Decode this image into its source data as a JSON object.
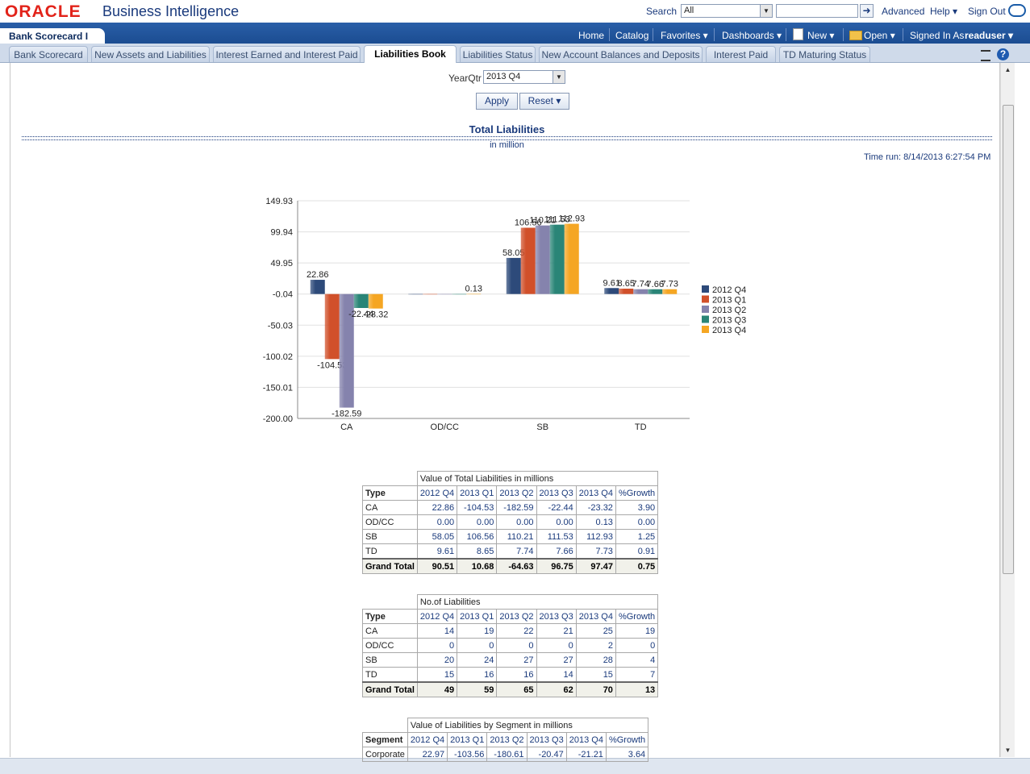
{
  "header": {
    "logo": "ORACLE",
    "app_title": "Business Intelligence",
    "search_label": "Search",
    "search_scope": "All",
    "advanced": "Advanced",
    "help": "Help ▾",
    "signout": "Sign Out"
  },
  "nav": {
    "dashboard_title": "Bank Scorecard I",
    "home": "Home",
    "catalog": "Catalog",
    "favorites": "Favorites ▾",
    "dashboards": "Dashboards ▾",
    "new": "New ▾",
    "open": "Open ▾",
    "signed_in_as": "Signed In As",
    "user": "readuser ▾"
  },
  "tabs": [
    {
      "label": "Bank Scorecard"
    },
    {
      "label": "New Assets and Liabilities"
    },
    {
      "label": "Interest Earned and Interest Paid"
    },
    {
      "label": "Liabilities Book"
    },
    {
      "label": "Liabilities Status"
    },
    {
      "label": "New Account Balances and Deposits"
    },
    {
      "label": "Interest Paid"
    },
    {
      "label": "TD Maturing Status"
    }
  ],
  "prompt": {
    "label": "YearQtr",
    "value": "2013 Q4",
    "apply": "Apply",
    "reset": "Reset ▾"
  },
  "report": {
    "title": "Total Liabilities",
    "subtitle": "in million",
    "time_run": "Time run: 8/14/2013 6:27:54 PM"
  },
  "chart_data": {
    "type": "bar",
    "categories": [
      "CA",
      "OD/CC",
      "SB",
      "TD"
    ],
    "y_ticks": [
      "149.93",
      "99.94",
      "49.95",
      "-0.04",
      "-50.03",
      "-100.02",
      "-150.01",
      "-200.00"
    ],
    "ylim": [
      -200.0,
      149.93
    ],
    "legend_position": "right",
    "series": [
      {
        "name": "2012 Q4",
        "color": "#2d4a7a",
        "values": [
          22.86,
          0.0,
          58.05,
          9.61
        ]
      },
      {
        "name": "2013 Q1",
        "color": "#d1502a",
        "values": [
          -104.53,
          0.0,
          106.56,
          8.65
        ]
      },
      {
        "name": "2013 Q2",
        "color": "#8583ad",
        "values": [
          -182.59,
          0.0,
          110.21,
          7.74
        ]
      },
      {
        "name": "2013 Q3",
        "color": "#2a8577",
        "values": [
          -22.44,
          0.0,
          111.53,
          7.66
        ]
      },
      {
        "name": "2013 Q4",
        "color": "#f5a623",
        "values": [
          -23.32,
          0.13,
          112.93,
          7.73
        ]
      }
    ],
    "data_labels": [
      [
        "22.86",
        "",
        "58.05",
        "9.61"
      ],
      [
        "-104.53",
        "",
        "106.56",
        "8.65"
      ],
      [
        "-182.59",
        "",
        "110.21",
        "7.74"
      ],
      [
        "-22.44",
        "",
        "111.53",
        "7.66"
      ],
      [
        "-23.32",
        "0.13",
        "112.93",
        "7.73"
      ]
    ]
  },
  "tables": [
    {
      "caption": "Value of Total Liabilities in millions",
      "row_header": "Type",
      "columns": [
        "2012 Q4",
        "2013 Q1",
        "2013 Q2",
        "2013 Q3",
        "2013 Q4",
        "%Growth"
      ],
      "rows": [
        {
          "label": "CA",
          "values": [
            "22.86",
            "-104.53",
            "-182.59",
            "-22.44",
            "-23.32",
            "3.90"
          ]
        },
        {
          "label": "OD/CC",
          "values": [
            "0.00",
            "0.00",
            "0.00",
            "0.00",
            "0.13",
            "0.00"
          ]
        },
        {
          "label": "SB",
          "values": [
            "58.05",
            "106.56",
            "110.21",
            "111.53",
            "112.93",
            "1.25"
          ]
        },
        {
          "label": "TD",
          "values": [
            "9.61",
            "8.65",
            "7.74",
            "7.66",
            "7.73",
            "0.91"
          ]
        }
      ],
      "total": {
        "label": "Grand Total",
        "values": [
          "90.51",
          "10.68",
          "-64.63",
          "96.75",
          "97.47",
          "0.75"
        ]
      }
    },
    {
      "caption": "No.of Liabilities",
      "row_header": "Type",
      "columns": [
        "2012 Q4",
        "2013 Q1",
        "2013 Q2",
        "2013 Q3",
        "2013 Q4",
        "%Growth"
      ],
      "rows": [
        {
          "label": "CA",
          "values": [
            "14",
            "19",
            "22",
            "21",
            "25",
            "19"
          ]
        },
        {
          "label": "OD/CC",
          "values": [
            "0",
            "0",
            "0",
            "0",
            "2",
            "0"
          ]
        },
        {
          "label": "SB",
          "values": [
            "20",
            "24",
            "27",
            "27",
            "28",
            "4"
          ]
        },
        {
          "label": "TD",
          "values": [
            "15",
            "16",
            "16",
            "14",
            "15",
            "7"
          ]
        }
      ],
      "total": {
        "label": "Grand Total",
        "values": [
          "49",
          "59",
          "65",
          "62",
          "70",
          "13"
        ]
      }
    },
    {
      "caption": "Value of Liabilities by Segment in millions",
      "row_header": "Segment",
      "columns": [
        "2012 Q4",
        "2013 Q1",
        "2013 Q2",
        "2013 Q3",
        "2013 Q4",
        "%Growth"
      ],
      "rows": [
        {
          "label": "Corporate",
          "values": [
            "22.97",
            "-103.56",
            "-180.61",
            "-20.47",
            "-21.21",
            "3.64"
          ]
        }
      ]
    }
  ]
}
